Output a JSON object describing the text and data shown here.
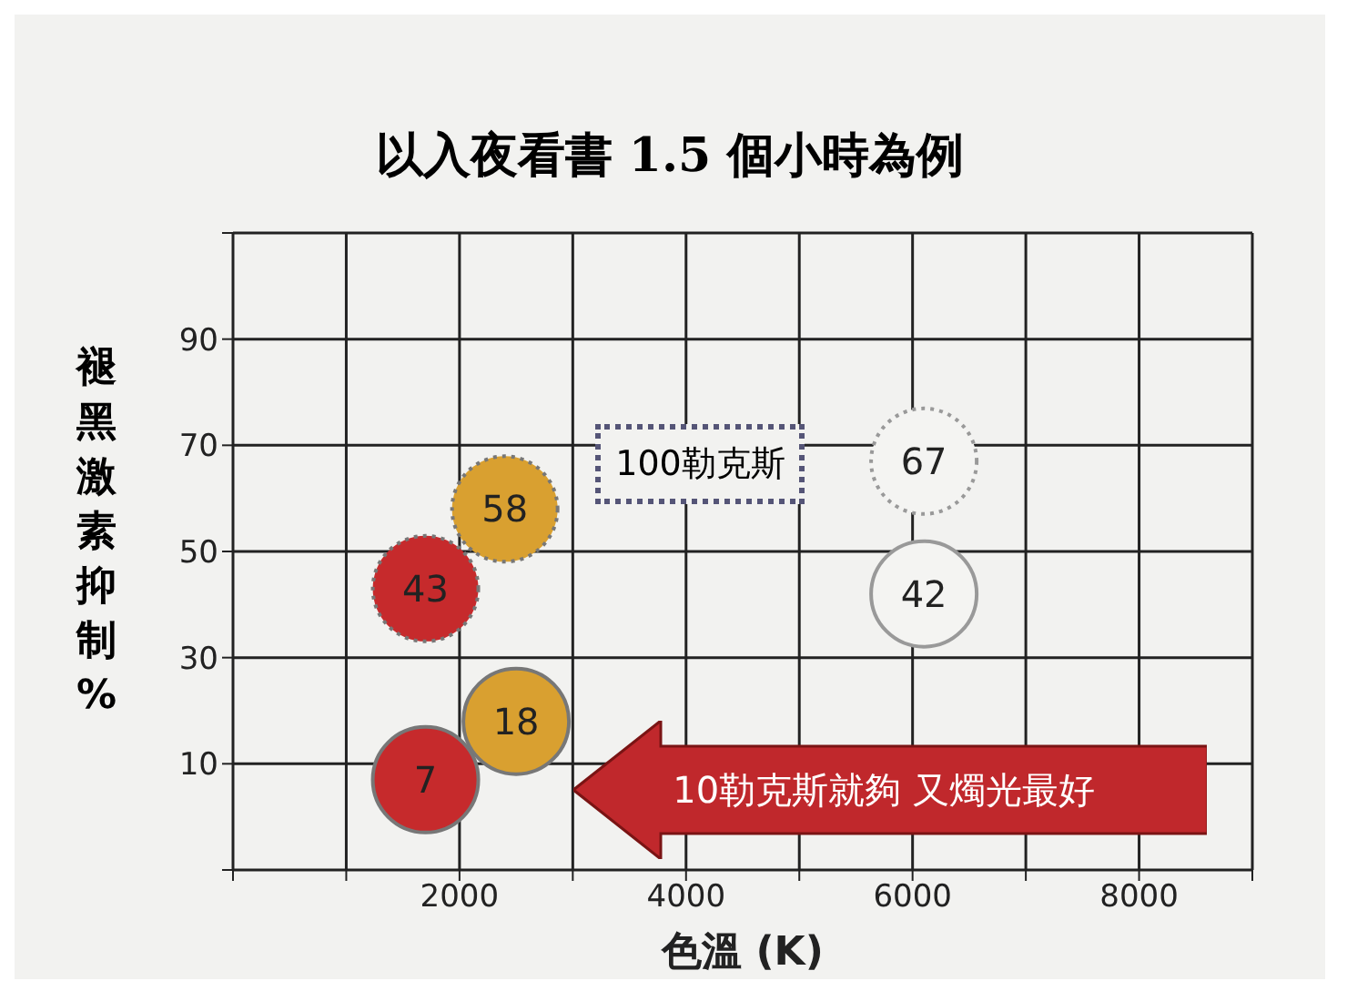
{
  "chart_data": {
    "type": "scatter",
    "title": "以入夜看書 1.5 個小時為例",
    "xlabel": "色溫 (K)",
    "ylabel": "褪黑激素抑制%",
    "series": [
      {
        "x": [
          1700,
          2400,
          6100
        ],
        "values": [
          43,
          58,
          67
        ],
        "colors": [
          "#c62a2c",
          "#d9a030",
          "#f4f4f2"
        ],
        "line_style": "dotted"
      },
      {
        "x": [
          1700,
          2500,
          6100
        ],
        "values": [
          7,
          18,
          42
        ],
        "colors": [
          "#c62a2c",
          "#d9a030",
          "#f4f4f2"
        ],
        "line_style": "solid"
      }
    ],
    "xlim": [
      0,
      9000
    ],
    "xticks": [
      {
        "value": 0,
        "label": null
      },
      {
        "value": 1000,
        "label": null
      },
      2000,
      {
        "value": 3000,
        "label": null
      },
      4000,
      {
        "value": 5000,
        "label": null
      },
      6000,
      {
        "value": 7000,
        "label": null
      },
      8000,
      {
        "value": 9000,
        "label": null
      }
    ],
    "ylim": [
      -10,
      110
    ],
    "yticks": [
      {
        "value": -10,
        "label": null
      },
      10,
      30,
      50,
      70,
      90,
      {
        "value": 110,
        "label": null
      }
    ],
    "grid": true,
    "data_labels": true,
    "marker": "circle",
    "annotations": [
      "100勒克斯",
      "10勒克斯就夠 又燭光最好"
    ]
  }
}
